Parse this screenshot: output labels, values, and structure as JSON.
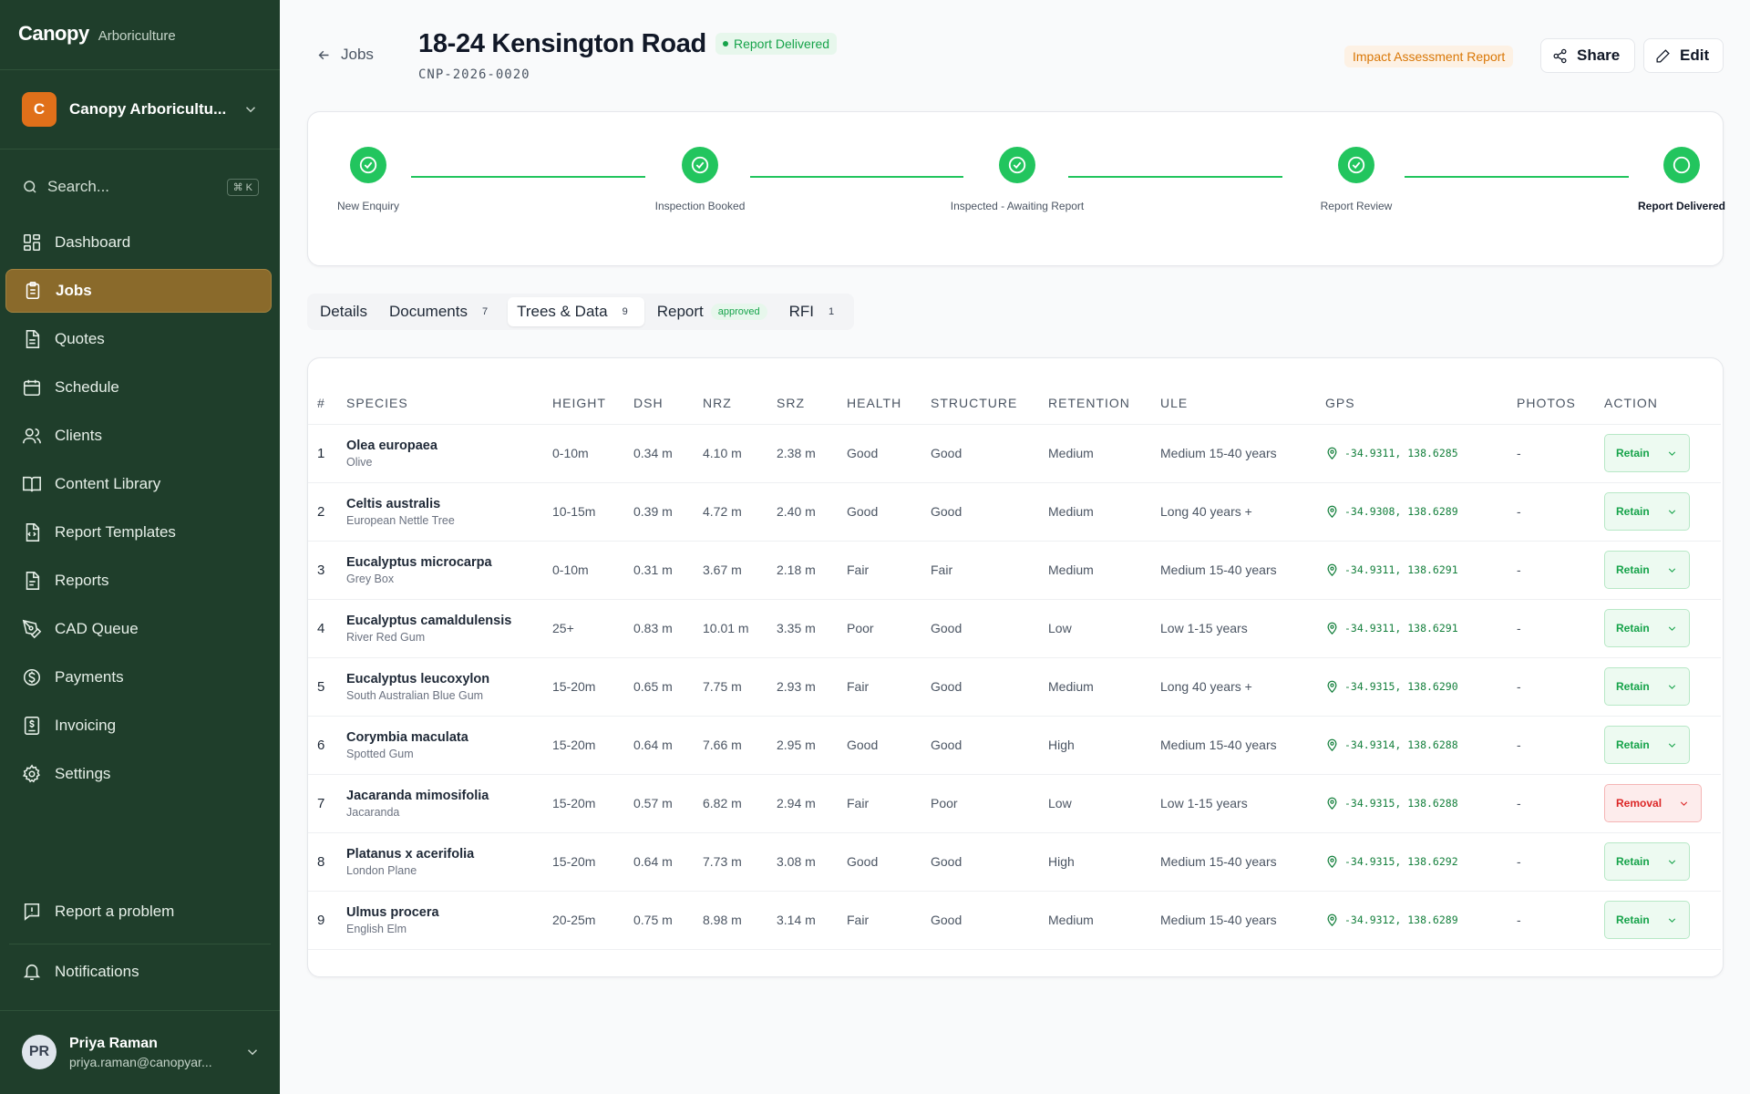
{
  "sidebar": {
    "brand": "Canopy",
    "brand_sub": "Arboriculture",
    "org_initial": "C",
    "org_name": "Canopy Arboricultu...",
    "search_placeholder": "Search...",
    "search_shortcut": "⌘ K",
    "items": [
      {
        "label": "Dashboard",
        "icon": "dashboard-icon"
      },
      {
        "label": "Jobs",
        "icon": "clipboard-icon",
        "active": true
      },
      {
        "label": "Quotes",
        "icon": "document-icon"
      },
      {
        "label": "Schedule",
        "icon": "calendar-icon"
      },
      {
        "label": "Clients",
        "icon": "users-icon"
      },
      {
        "label": "Content Library",
        "icon": "book-icon"
      },
      {
        "label": "Report Templates",
        "icon": "file-code-icon"
      },
      {
        "label": "Reports",
        "icon": "file-text-icon"
      },
      {
        "label": "CAD Queue",
        "icon": "pen-tool-icon"
      },
      {
        "label": "Payments",
        "icon": "dollar-circle-icon"
      },
      {
        "label": "Invoicing",
        "icon": "invoice-icon"
      },
      {
        "label": "Settings",
        "icon": "gear-icon"
      }
    ],
    "report_problem": "Report a problem",
    "notifications": "Notifications",
    "user_initials": "PR",
    "user_name": "Priya Raman",
    "user_email": "priya.raman@canopyar..."
  },
  "header": {
    "back_label": "Jobs",
    "title": "18-24 Kensington Road",
    "status_badge": "Report Delivered",
    "job_code": "CNP-2026-0020",
    "report_type": "Impact Assessment Report",
    "share_label": "Share",
    "edit_label": "Edit"
  },
  "progress": {
    "steps": [
      {
        "label": "New Enquiry",
        "done": true
      },
      {
        "label": "Inspection Booked",
        "done": true
      },
      {
        "label": "Inspected - Awaiting Report",
        "done": true
      },
      {
        "label": "Report Review",
        "done": true
      },
      {
        "label": "Report Delivered",
        "current": true
      }
    ]
  },
  "tabs": [
    {
      "label": "Details"
    },
    {
      "label": "Documents",
      "count": "7"
    },
    {
      "label": "Trees & Data",
      "count": "9",
      "active": true
    },
    {
      "label": "Report",
      "pill": "approved"
    },
    {
      "label": "RFI",
      "count": "1"
    }
  ],
  "table": {
    "columns": [
      "#",
      "SPECIES",
      "HEIGHT",
      "DSH",
      "NRZ",
      "SRZ",
      "HEALTH",
      "STRUCTURE",
      "RETENTION",
      "ULE",
      "GPS",
      "PHOTOS",
      "ACTION"
    ],
    "rows": [
      {
        "num": "1",
        "species": "Olea europaea",
        "common": "Olive",
        "height": "0-10m",
        "dsh": "0.34 m",
        "nrz": "4.10 m",
        "srz": "2.38 m",
        "health": "Good",
        "structure": "Good",
        "retention": "Medium",
        "ule": "Medium 15-40 years",
        "gps": "-34.9311, 138.6285",
        "photos": "-",
        "action": "Retain"
      },
      {
        "num": "2",
        "species": "Celtis australis",
        "common": "European Nettle Tree",
        "height": "10-15m",
        "dsh": "0.39 m",
        "nrz": "4.72 m",
        "srz": "2.40 m",
        "health": "Good",
        "structure": "Good",
        "retention": "Medium",
        "ule": "Long 40 years +",
        "gps": "-34.9308, 138.6289",
        "photos": "-",
        "action": "Retain"
      },
      {
        "num": "3",
        "species": "Eucalyptus microcarpa",
        "common": "Grey Box",
        "height": "0-10m",
        "dsh": "0.31 m",
        "nrz": "3.67 m",
        "srz": "2.18 m",
        "health": "Fair",
        "structure": "Fair",
        "retention": "Medium",
        "ule": "Medium 15-40 years",
        "gps": "-34.9311, 138.6291",
        "photos": "-",
        "action": "Retain"
      },
      {
        "num": "4",
        "species": "Eucalyptus camaldulensis",
        "common": "River Red Gum",
        "height": "25+",
        "dsh": "0.83 m",
        "nrz": "10.01 m",
        "srz": "3.35 m",
        "health": "Poor",
        "structure": "Good",
        "retention": "Low",
        "ule": "Low 1-15 years",
        "gps": "-34.9311, 138.6291",
        "photos": "-",
        "action": "Retain"
      },
      {
        "num": "5",
        "species": "Eucalyptus leucoxylon",
        "common": "South Australian Blue Gum",
        "height": "15-20m",
        "dsh": "0.65 m",
        "nrz": "7.75 m",
        "srz": "2.93 m",
        "health": "Fair",
        "structure": "Good",
        "retention": "Medium",
        "ule": "Long 40 years +",
        "gps": "-34.9315, 138.6290",
        "photos": "-",
        "action": "Retain"
      },
      {
        "num": "6",
        "species": "Corymbia maculata",
        "common": "Spotted Gum",
        "height": "15-20m",
        "dsh": "0.64 m",
        "nrz": "7.66 m",
        "srz": "2.95 m",
        "health": "Good",
        "structure": "Good",
        "retention": "High",
        "ule": "Medium 15-40 years",
        "gps": "-34.9314, 138.6288",
        "photos": "-",
        "action": "Retain"
      },
      {
        "num": "7",
        "species": "Jacaranda mimosifolia",
        "common": "Jacaranda",
        "height": "15-20m",
        "dsh": "0.57 m",
        "nrz": "6.82 m",
        "srz": "2.94 m",
        "health": "Fair",
        "structure": "Poor",
        "retention": "Low",
        "ule": "Low 1-15 years",
        "gps": "-34.9315, 138.6288",
        "photos": "-",
        "action": "Removal"
      },
      {
        "num": "8",
        "species": "Platanus x acerifolia",
        "common": "London Plane",
        "height": "15-20m",
        "dsh": "0.64 m",
        "nrz": "7.73 m",
        "srz": "3.08 m",
        "health": "Good",
        "structure": "Good",
        "retention": "High",
        "ule": "Medium 15-40 years",
        "gps": "-34.9315, 138.6292",
        "photos": "-",
        "action": "Retain"
      },
      {
        "num": "9",
        "species": "Ulmus procera",
        "common": "English Elm",
        "height": "20-25m",
        "dsh": "0.75 m",
        "nrz": "8.98 m",
        "srz": "3.14 m",
        "health": "Fair",
        "structure": "Good",
        "retention": "Medium",
        "ule": "Medium 15-40 years",
        "gps": "-34.9312, 138.6289",
        "photos": "-",
        "action": "Retain"
      }
    ]
  },
  "colors": {
    "sidebar_bg": "#1f3e2b",
    "active_nav": "#8a6a2b",
    "success": "#22c55e",
    "danger": "#dc2626",
    "warning": "#d97706"
  }
}
